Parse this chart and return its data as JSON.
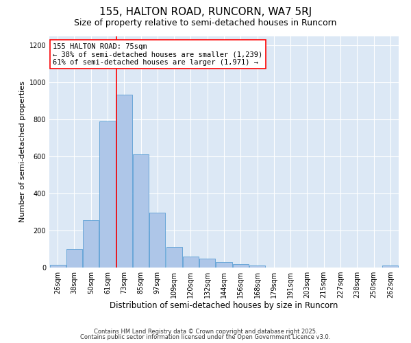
{
  "title1": "155, HALTON ROAD, RUNCORN, WA7 5RJ",
  "title2": "Size of property relative to semi-detached houses in Runcorn",
  "xlabel": "Distribution of semi-detached houses by size in Runcorn",
  "ylabel": "Number of semi-detached properties",
  "categories": [
    "26sqm",
    "38sqm",
    "50sqm",
    "61sqm",
    "73sqm",
    "85sqm",
    "97sqm",
    "109sqm",
    "120sqm",
    "132sqm",
    "144sqm",
    "156sqm",
    "168sqm",
    "179sqm",
    "191sqm",
    "203sqm",
    "215sqm",
    "227sqm",
    "238sqm",
    "250sqm",
    "262sqm"
  ],
  "values": [
    15,
    100,
    255,
    790,
    935,
    610,
    295,
    110,
    60,
    50,
    30,
    20,
    10,
    0,
    0,
    0,
    0,
    0,
    0,
    0,
    10
  ],
  "bar_color": "#aec6e8",
  "bar_edge_color": "#5a9fd4",
  "vline_x_index": 4,
  "vline_color": "red",
  "annotation_text": "155 HALTON ROAD: 75sqm\n← 38% of semi-detached houses are smaller (1,239)\n61% of semi-detached houses are larger (1,971) →",
  "annotation_box_color": "white",
  "annotation_box_edge": "red",
  "ylim": [
    0,
    1250
  ],
  "yticks": [
    0,
    200,
    400,
    600,
    800,
    1000,
    1200
  ],
  "background_color": "#dce8f5",
  "footer_line1": "Contains HM Land Registry data © Crown copyright and database right 2025.",
  "footer_line2": "Contains public sector information licensed under the Open Government Licence v3.0.",
  "title1_fontsize": 11,
  "title2_fontsize": 9,
  "xlabel_fontsize": 8.5,
  "ylabel_fontsize": 8,
  "tick_fontsize": 7,
  "annotation_fontsize": 7.5,
  "footer_fontsize": 6
}
